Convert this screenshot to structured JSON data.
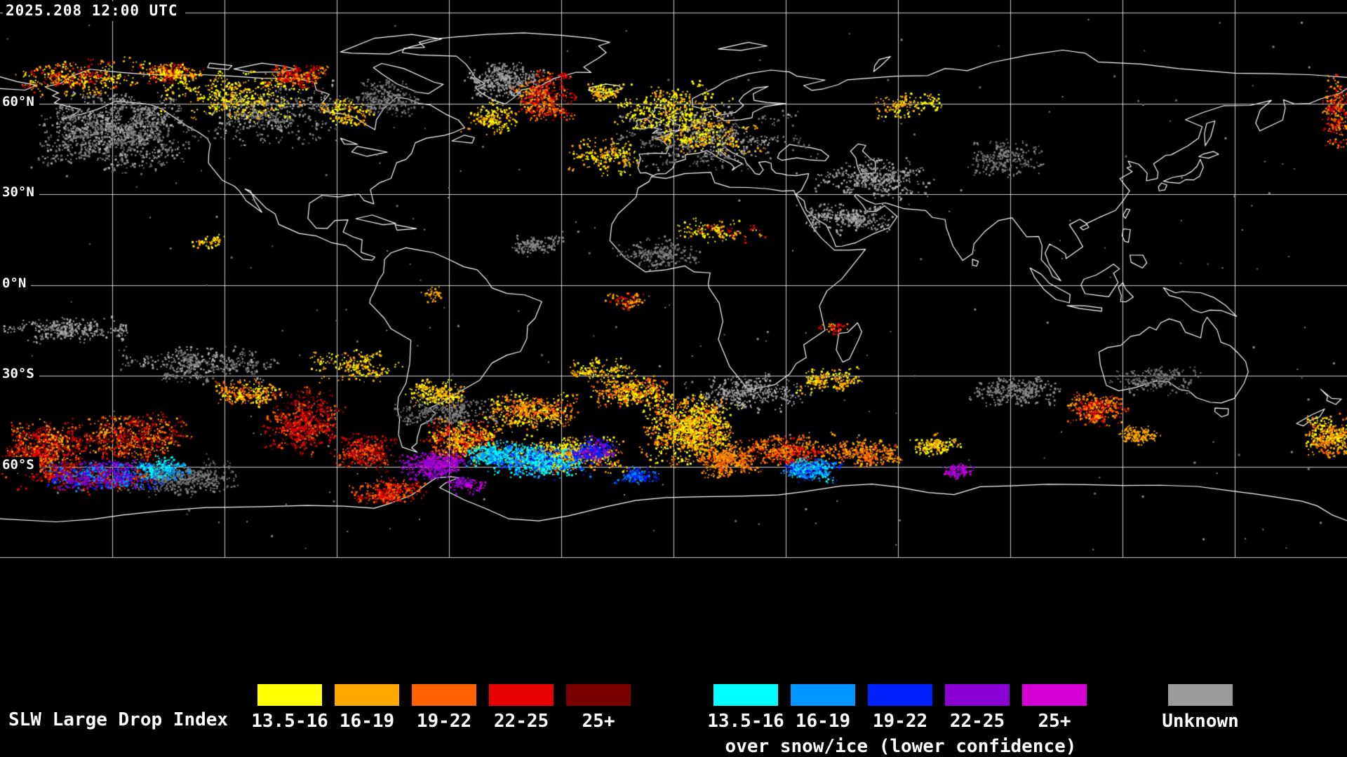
{
  "header": {
    "timestamp": "2025.208 12:00 UTC"
  },
  "map": {
    "latitude_labels": [
      "60°N",
      "30°N",
      "0°N",
      "30°S",
      "60°S"
    ],
    "background_color": "#000000",
    "grid_color": "#ffffff",
    "coastline_color": "#ffffff"
  },
  "legend": {
    "title": "SLW Large Drop Index",
    "liquid_group": {
      "items": [
        {
          "label": "13.5-16",
          "color": "#ffff00"
        },
        {
          "label": "16-19",
          "color": "#ffa800"
        },
        {
          "label": "19-22",
          "color": "#ff6000"
        },
        {
          "label": "22-25",
          "color": "#e60000"
        },
        {
          "label": "25+",
          "color": "#7a0000"
        }
      ]
    },
    "snow_ice_group": {
      "items": [
        {
          "label": "13.5-16",
          "color": "#00ffff"
        },
        {
          "label": "16-19",
          "color": "#0096ff"
        },
        {
          "label": "19-22",
          "color": "#0022ff"
        },
        {
          "label": "22-25",
          "color": "#8a00d4"
        },
        {
          "label": "25+",
          "color": "#d400d4"
        }
      ],
      "caption": "over snow/ice (lower confidence)"
    },
    "unknown_group": {
      "label": "Unknown",
      "color": "#9a9a9a"
    }
  }
}
